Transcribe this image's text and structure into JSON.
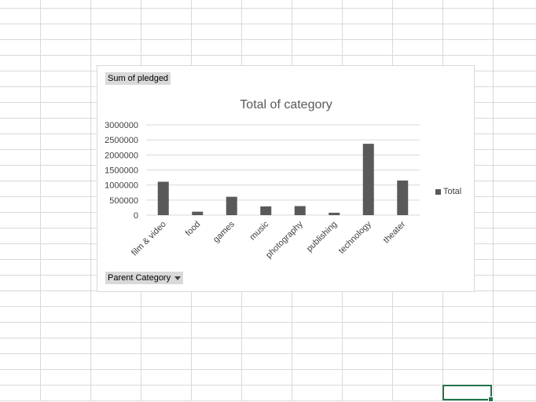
{
  "pivot": {
    "value_field": "Sum of pledged",
    "axis_field": "Parent Category"
  },
  "chart_data": {
    "type": "bar",
    "title": "Total of category",
    "xlabel": "",
    "ylabel": "",
    "categories": [
      "film & video",
      "food",
      "games",
      "music",
      "photography",
      "publishing",
      "technology",
      "theater"
    ],
    "series": [
      {
        "name": "Total",
        "values": [
          1110000,
          115000,
          610000,
          290000,
          300000,
          80000,
          2370000,
          1150000
        ],
        "color": "#595959"
      }
    ],
    "yticks": [
      0,
      500000,
      1000000,
      1500000,
      2000000,
      2500000,
      3000000
    ],
    "ylim": [
      0,
      3000000
    ],
    "grid": true,
    "legend": "right"
  }
}
